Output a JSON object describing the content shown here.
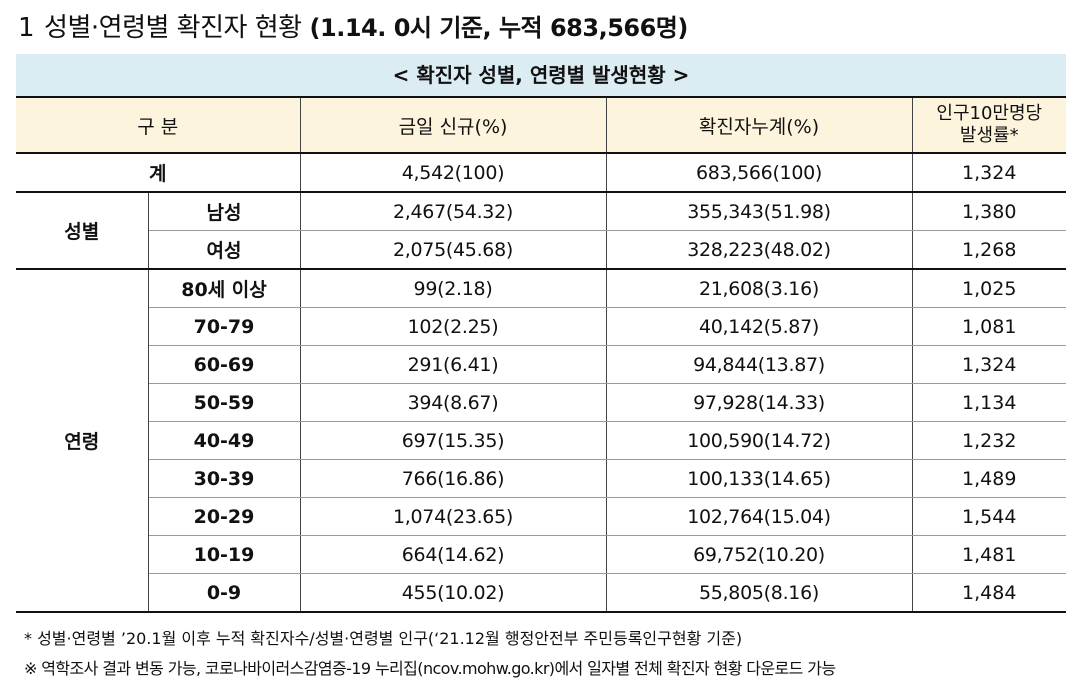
{
  "heading": {
    "number": "1",
    "title": "성별·연령별 확진자 현황",
    "subtitle": "(1.14. 0시 기준, 누적 683,566명)"
  },
  "table": {
    "caption": "< 확진자 성별, 연령별 발생현황 >",
    "headers": {
      "category": "구 분",
      "new": "금일 신규(%)",
      "cumulative": "확진자누계(%)",
      "rate_line1": "인구10만명당",
      "rate_line2": "발생률*"
    },
    "total": {
      "label": "계",
      "new": "4,542(100)",
      "cumulative": "683,566(100)",
      "rate": "1,324"
    },
    "sex": {
      "group": "성별",
      "rows": [
        {
          "label": "남성",
          "new": "2,467(54.32)",
          "cumulative": "355,343(51.98)",
          "rate": "1,380"
        },
        {
          "label": "여성",
          "new": "2,075(45.68)",
          "cumulative": "328,223(48.02)",
          "rate": "1,268"
        }
      ]
    },
    "age": {
      "group": "연령",
      "rows": [
        {
          "label": "80세 이상",
          "new": "99(2.18)",
          "cumulative": "21,608(3.16)",
          "rate": "1,025"
        },
        {
          "label": "70-79",
          "new": "102(2.25)",
          "cumulative": "40,142(5.87)",
          "rate": "1,081"
        },
        {
          "label": "60-69",
          "new": "291(6.41)",
          "cumulative": "94,844(13.87)",
          "rate": "1,324"
        },
        {
          "label": "50-59",
          "new": "394(8.67)",
          "cumulative": "97,928(14.33)",
          "rate": "1,134"
        },
        {
          "label": "40-49",
          "new": "697(15.35)",
          "cumulative": "100,590(14.72)",
          "rate": "1,232"
        },
        {
          "label": "30-39",
          "new": "766(16.86)",
          "cumulative": "100,133(14.65)",
          "rate": "1,489"
        },
        {
          "label": "20-29",
          "new": "1,074(23.65)",
          "cumulative": "102,764(15.04)",
          "rate": "1,544"
        },
        {
          "label": "10-19",
          "new": "664(14.62)",
          "cumulative": "69,752(10.20)",
          "rate": "1,481"
        },
        {
          "label": "0-9",
          "new": "455(10.02)",
          "cumulative": "55,805(8.16)",
          "rate": "1,484"
        }
      ]
    }
  },
  "notes": [
    "* 성별·연령별 ’20.1월 이후 누적 확진자수/성별·연령별 인구(‘21.12월 행정안전부 주민등록인구현황 기준)",
    "※ 역학조사 결과 변동 가능, 코로나바이러스감염증-19 누리집(ncov.mohw.go.kr)에서 일자별 전체 확진자 현황 다운로드 가능"
  ]
}
